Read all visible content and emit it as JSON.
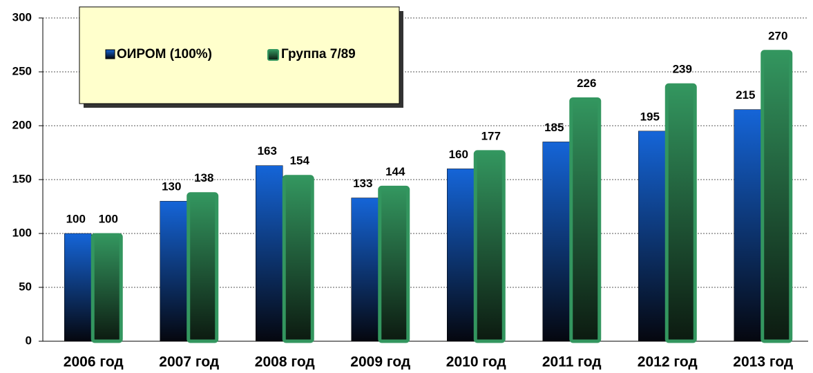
{
  "chart_data": {
    "type": "bar",
    "categories": [
      "2006 год",
      "2007 год",
      "2008 год",
      "2009 год",
      "2010 год",
      "2011 год",
      "2012 год",
      "2013 год"
    ],
    "series": [
      {
        "name": "ОИРОМ (100%)",
        "color": "#1565d8",
        "values": [
          100,
          130,
          163,
          133,
          160,
          185,
          195,
          215
        ]
      },
      {
        "name": "Группа 7/89",
        "color": "#33965f",
        "values": [
          100,
          138,
          154,
          144,
          177,
          226,
          239,
          270
        ]
      }
    ],
    "ylim": [
      0,
      300
    ],
    "yticks": [
      0,
      50,
      100,
      150,
      200,
      250,
      300
    ],
    "grid": true
  }
}
